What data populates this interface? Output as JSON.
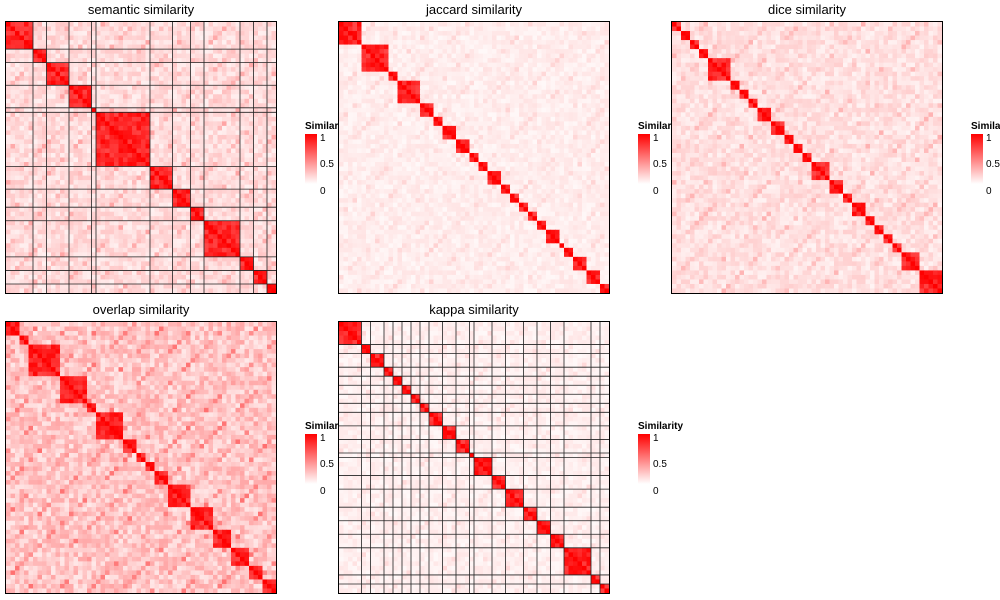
{
  "legend": {
    "title": "Similarity",
    "ticks": [
      "1",
      "0.5",
      "0"
    ]
  },
  "colors": {
    "high": "#ff0000",
    "low": "#ffffff",
    "border": "#000000",
    "split": "#222222"
  },
  "chart_data": [
    {
      "type": "heatmap",
      "title": "semantic similarity",
      "n_terms": 60,
      "clusters": [
        [
          0,
          6
        ],
        [
          6,
          9
        ],
        [
          9,
          14
        ],
        [
          14,
          19
        ],
        [
          19,
          20
        ],
        [
          20,
          32
        ],
        [
          32,
          37
        ],
        [
          37,
          41
        ],
        [
          41,
          44
        ],
        [
          44,
          52
        ],
        [
          52,
          55
        ],
        [
          55,
          58
        ],
        [
          58,
          60
        ]
      ],
      "value_range": [
        0,
        1
      ],
      "show_splits": true
    },
    {
      "type": "heatmap",
      "title": "jaccard similarity",
      "n_terms": 60,
      "clusters": [
        [
          0,
          5
        ],
        [
          5,
          11
        ],
        [
          11,
          13
        ],
        [
          13,
          18
        ],
        [
          18,
          21
        ],
        [
          21,
          23
        ],
        [
          23,
          26
        ],
        [
          26,
          29
        ],
        [
          29,
          31
        ],
        [
          31,
          33
        ],
        [
          33,
          36
        ],
        [
          36,
          38
        ],
        [
          38,
          40
        ],
        [
          40,
          42
        ],
        [
          42,
          44
        ],
        [
          44,
          46
        ],
        [
          46,
          49
        ],
        [
          49,
          50
        ],
        [
          50,
          52
        ],
        [
          52,
          55
        ],
        [
          55,
          58
        ],
        [
          58,
          60
        ]
      ],
      "value_range": [
        0,
        1
      ],
      "show_splits": false
    },
    {
      "type": "heatmap",
      "title": "dice similarity",
      "n_terms": 60,
      "clusters": [
        [
          0,
          2
        ],
        [
          2,
          4
        ],
        [
          4,
          6
        ],
        [
          6,
          8
        ],
        [
          8,
          13
        ],
        [
          13,
          15
        ],
        [
          15,
          17
        ],
        [
          17,
          19
        ],
        [
          19,
          22
        ],
        [
          22,
          25
        ],
        [
          25,
          27
        ],
        [
          27,
          29
        ],
        [
          29,
          31
        ],
        [
          31,
          35
        ],
        [
          35,
          38
        ],
        [
          38,
          40
        ],
        [
          40,
          43
        ],
        [
          43,
          45
        ],
        [
          45,
          47
        ],
        [
          47,
          49
        ],
        [
          49,
          51
        ],
        [
          51,
          55
        ],
        [
          55,
          60
        ]
      ],
      "value_range": [
        0,
        1
      ],
      "show_splits": false
    },
    {
      "type": "heatmap",
      "title": "overlap similarity",
      "n_terms": 60,
      "clusters": [
        [
          0,
          3
        ],
        [
          3,
          5
        ],
        [
          5,
          12
        ],
        [
          12,
          18
        ],
        [
          18,
          20
        ],
        [
          20,
          26
        ],
        [
          26,
          29
        ],
        [
          29,
          31
        ],
        [
          31,
          33
        ],
        [
          33,
          36
        ],
        [
          36,
          41
        ],
        [
          41,
          46
        ],
        [
          46,
          50
        ],
        [
          50,
          54
        ],
        [
          54,
          57
        ],
        [
          57,
          60
        ]
      ],
      "value_range": [
        0,
        1
      ],
      "show_splits": false
    },
    {
      "type": "heatmap",
      "title": "kappa similarity",
      "n_terms": 60,
      "clusters": [
        [
          0,
          5
        ],
        [
          5,
          7
        ],
        [
          7,
          10
        ],
        [
          10,
          12
        ],
        [
          12,
          14
        ],
        [
          14,
          16
        ],
        [
          16,
          18
        ],
        [
          18,
          20
        ],
        [
          20,
          23
        ],
        [
          23,
          26
        ],
        [
          26,
          29
        ],
        [
          29,
          30
        ],
        [
          30,
          34
        ],
        [
          34,
          37
        ],
        [
          37,
          41
        ],
        [
          41,
          44
        ],
        [
          44,
          47
        ],
        [
          47,
          50
        ],
        [
          50,
          56
        ],
        [
          56,
          58
        ],
        [
          58,
          60
        ]
      ],
      "value_range": [
        0,
        1
      ],
      "show_splits": true
    }
  ]
}
